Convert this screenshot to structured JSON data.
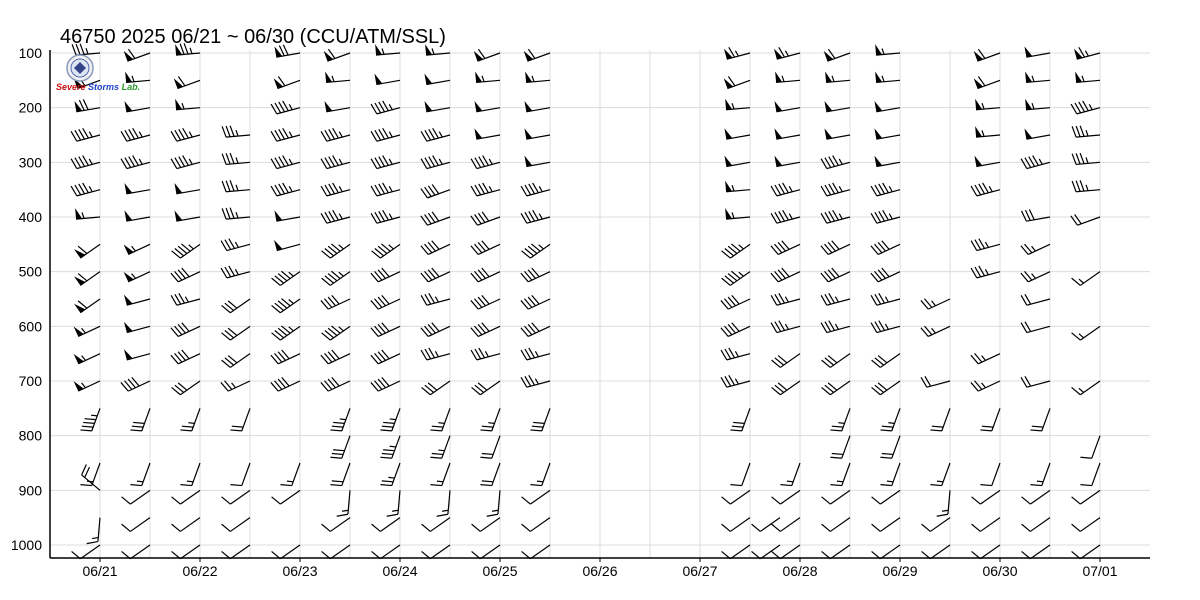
{
  "title": "46750  2025  06/21 ~ 06/30 (CCU/ATM/SSL)",
  "logo": {
    "caption_a": "Severe",
    "caption_b": "Storms",
    "caption_c": "Lab."
  },
  "chart_data": {
    "type": "wind-barb time-height",
    "y_ticks": [
      "100",
      "200",
      "300",
      "400",
      "500",
      "600",
      "700",
      "800",
      "900",
      "1000"
    ],
    "y_values": [
      100,
      200,
      300,
      400,
      500,
      600,
      700,
      800,
      900,
      1000
    ],
    "x_ticks": [
      "06/21",
      "06/22",
      "06/23",
      "06/24",
      "06/25",
      "06/26",
      "06/27",
      "06/28",
      "06/29",
      "06/30",
      "07/01"
    ],
    "ylim": [
      100,
      1000
    ],
    "xlim_days": [
      0,
      10.5
    ],
    "grid": true,
    "soundings": [
      {
        "time": 0.0,
        "barbs": [
          [
            100,
            35
          ],
          [
            150,
            60
          ],
          [
            200,
            70
          ],
          [
            250,
            45
          ],
          [
            300,
            45
          ],
          [
            350,
            45
          ],
          [
            400,
            55
          ],
          [
            450,
            60
          ],
          [
            500,
            60
          ],
          [
            550,
            60
          ],
          [
            600,
            55
          ],
          [
            650,
            55
          ],
          [
            700,
            55
          ],
          [
            750,
            45
          ],
          [
            850,
            15
          ],
          [
            900,
            20
          ],
          [
            950,
            15
          ],
          [
            1000,
            10
          ]
        ]
      },
      {
        "time": 0.5,
        "barbs": [
          [
            100,
            60
          ],
          [
            150,
            55
          ],
          [
            200,
            50
          ],
          [
            250,
            45
          ],
          [
            300,
            45
          ],
          [
            350,
            50
          ],
          [
            400,
            50
          ],
          [
            450,
            55
          ],
          [
            500,
            55
          ],
          [
            550,
            50
          ],
          [
            600,
            50
          ],
          [
            650,
            50
          ],
          [
            700,
            40
          ],
          [
            750,
            30
          ],
          [
            850,
            15
          ],
          [
            900,
            10
          ],
          [
            950,
            10
          ],
          [
            1000,
            10
          ]
        ]
      },
      {
        "time": 1.0,
        "barbs": [
          [
            100,
            75
          ],
          [
            150,
            60
          ],
          [
            200,
            55
          ],
          [
            250,
            45
          ],
          [
            300,
            45
          ],
          [
            350,
            50
          ],
          [
            400,
            50
          ],
          [
            450,
            45
          ],
          [
            500,
            40
          ],
          [
            550,
            35
          ],
          [
            600,
            40
          ],
          [
            650,
            40
          ],
          [
            700,
            30
          ],
          [
            750,
            25
          ],
          [
            850,
            15
          ],
          [
            900,
            10
          ],
          [
            950,
            10
          ],
          [
            1000,
            10
          ]
        ]
      },
      {
        "time": 1.5,
        "barbs": [
          [
            250,
            35
          ],
          [
            300,
            35
          ],
          [
            350,
            35
          ],
          [
            400,
            35
          ],
          [
            450,
            35
          ],
          [
            500,
            35
          ],
          [
            550,
            30
          ],
          [
            600,
            30
          ],
          [
            650,
            30
          ],
          [
            700,
            25
          ],
          [
            750,
            20
          ],
          [
            850,
            10
          ],
          [
            900,
            10
          ],
          [
            950,
            10
          ],
          [
            1000,
            10
          ]
        ]
      },
      {
        "time": 2.0,
        "barbs": [
          [
            100,
            70
          ],
          [
            150,
            60
          ],
          [
            200,
            45
          ],
          [
            250,
            45
          ],
          [
            300,
            45
          ],
          [
            350,
            45
          ],
          [
            400,
            50
          ],
          [
            450,
            50
          ],
          [
            500,
            45
          ],
          [
            550,
            45
          ],
          [
            600,
            45
          ],
          [
            650,
            40
          ],
          [
            700,
            40
          ],
          [
            850,
            15
          ],
          [
            900,
            10
          ],
          [
            1000,
            10
          ]
        ]
      },
      {
        "time": 2.5,
        "barbs": [
          [
            100,
            60
          ],
          [
            150,
            55
          ],
          [
            200,
            50
          ],
          [
            250,
            45
          ],
          [
            300,
            45
          ],
          [
            350,
            45
          ],
          [
            400,
            45
          ],
          [
            450,
            45
          ],
          [
            500,
            45
          ],
          [
            550,
            40
          ],
          [
            600,
            45
          ],
          [
            650,
            40
          ],
          [
            700,
            40
          ],
          [
            750,
            35
          ],
          [
            800,
            30
          ],
          [
            850,
            20
          ],
          [
            900,
            15
          ],
          [
            950,
            10
          ],
          [
            1000,
            10
          ]
        ]
      },
      {
        "time": 3.0,
        "barbs": [
          [
            100,
            55
          ],
          [
            150,
            50
          ],
          [
            200,
            45
          ],
          [
            250,
            45
          ],
          [
            300,
            45
          ],
          [
            350,
            45
          ],
          [
            400,
            45
          ],
          [
            450,
            45
          ],
          [
            500,
            40
          ],
          [
            550,
            40
          ],
          [
            600,
            40
          ],
          [
            650,
            40
          ],
          [
            700,
            40
          ],
          [
            750,
            35
          ],
          [
            800,
            35
          ],
          [
            850,
            25
          ],
          [
            900,
            15
          ],
          [
            950,
            10
          ],
          [
            1000,
            10
          ]
        ]
      },
      {
        "time": 3.5,
        "barbs": [
          [
            100,
            55
          ],
          [
            150,
            50
          ],
          [
            200,
            50
          ],
          [
            250,
            45
          ],
          [
            300,
            45
          ],
          [
            350,
            40
          ],
          [
            400,
            40
          ],
          [
            450,
            40
          ],
          [
            500,
            40
          ],
          [
            550,
            35
          ],
          [
            600,
            40
          ],
          [
            650,
            35
          ],
          [
            700,
            30
          ],
          [
            750,
            25
          ],
          [
            800,
            25
          ],
          [
            850,
            15
          ],
          [
            900,
            15
          ],
          [
            950,
            10
          ],
          [
            1000,
            10
          ]
        ]
      },
      {
        "time": 4.0,
        "barbs": [
          [
            100,
            60
          ],
          [
            150,
            55
          ],
          [
            200,
            50
          ],
          [
            250,
            50
          ],
          [
            300,
            45
          ],
          [
            350,
            45
          ],
          [
            400,
            40
          ],
          [
            450,
            40
          ],
          [
            500,
            40
          ],
          [
            550,
            40
          ],
          [
            600,
            40
          ],
          [
            650,
            35
          ],
          [
            700,
            30
          ],
          [
            750,
            25
          ],
          [
            800,
            20
          ],
          [
            850,
            20
          ],
          [
            900,
            15
          ],
          [
            950,
            10
          ],
          [
            1000,
            10
          ]
        ]
      },
      {
        "time": 4.5,
        "barbs": [
          [
            100,
            60
          ],
          [
            150,
            55
          ],
          [
            200,
            50
          ],
          [
            250,
            50
          ],
          [
            300,
            50
          ],
          [
            350,
            45
          ],
          [
            400,
            45
          ],
          [
            450,
            45
          ],
          [
            500,
            40
          ],
          [
            550,
            40
          ],
          [
            600,
            40
          ],
          [
            650,
            35
          ],
          [
            700,
            35
          ],
          [
            750,
            30
          ],
          [
            850,
            15
          ],
          [
            900,
            10
          ],
          [
            950,
            10
          ],
          [
            1000,
            10
          ]
        ]
      },
      {
        "time": 6.5,
        "barbs": [
          [
            100,
            65
          ],
          [
            150,
            60
          ],
          [
            200,
            55
          ],
          [
            250,
            50
          ],
          [
            300,
            50
          ],
          [
            350,
            55
          ],
          [
            400,
            55
          ],
          [
            450,
            45
          ],
          [
            500,
            45
          ],
          [
            550,
            40
          ],
          [
            600,
            40
          ],
          [
            650,
            35
          ],
          [
            700,
            35
          ],
          [
            750,
            30
          ],
          [
            850,
            10
          ],
          [
            900,
            10
          ],
          [
            950,
            10
          ],
          [
            1000,
            10
          ]
        ]
      },
      {
        "time": 6.8,
        "barbs": [
          [
            950,
            10
          ],
          [
            1000,
            10
          ]
        ]
      },
      {
        "time": 7.0,
        "barbs": [
          [
            100,
            65
          ],
          [
            150,
            55
          ],
          [
            200,
            50
          ],
          [
            250,
            50
          ],
          [
            300,
            50
          ],
          [
            350,
            45
          ],
          [
            400,
            45
          ],
          [
            450,
            40
          ],
          [
            500,
            40
          ],
          [
            550,
            35
          ],
          [
            600,
            35
          ],
          [
            650,
            30
          ],
          [
            700,
            30
          ],
          [
            850,
            15
          ],
          [
            900,
            10
          ],
          [
            950,
            10
          ],
          [
            1000,
            10
          ]
        ]
      },
      {
        "time": 7.5,
        "barbs": [
          [
            100,
            60
          ],
          [
            150,
            55
          ],
          [
            200,
            50
          ],
          [
            250,
            50
          ],
          [
            300,
            45
          ],
          [
            350,
            45
          ],
          [
            400,
            45
          ],
          [
            450,
            40
          ],
          [
            500,
            40
          ],
          [
            550,
            35
          ],
          [
            600,
            35
          ],
          [
            650,
            30
          ],
          [
            700,
            30
          ],
          [
            750,
            25
          ],
          [
            800,
            20
          ],
          [
            850,
            15
          ],
          [
            900,
            10
          ],
          [
            950,
            10
          ],
          [
            1000,
            10
          ]
        ]
      },
      {
        "time": 8.0,
        "barbs": [
          [
            100,
            55
          ],
          [
            150,
            55
          ],
          [
            200,
            50
          ],
          [
            250,
            50
          ],
          [
            300,
            50
          ],
          [
            350,
            45
          ],
          [
            400,
            45
          ],
          [
            450,
            40
          ],
          [
            500,
            40
          ],
          [
            550,
            35
          ],
          [
            600,
            35
          ],
          [
            650,
            30
          ],
          [
            700,
            30
          ],
          [
            750,
            25
          ],
          [
            800,
            20
          ],
          [
            850,
            15
          ],
          [
            900,
            10
          ],
          [
            950,
            10
          ],
          [
            1000,
            10
          ]
        ]
      },
      {
        "time": 8.5,
        "barbs": [
          [
            550,
            25
          ],
          [
            600,
            25
          ],
          [
            700,
            20
          ],
          [
            750,
            20
          ],
          [
            850,
            15
          ],
          [
            900,
            15
          ],
          [
            950,
            10
          ],
          [
            1000,
            10
          ]
        ]
      },
      {
        "time": 9.0,
        "barbs": [
          [
            100,
            60
          ],
          [
            150,
            60
          ],
          [
            200,
            55
          ],
          [
            250,
            55
          ],
          [
            300,
            50
          ],
          [
            350,
            45
          ],
          [
            450,
            35
          ],
          [
            500,
            35
          ],
          [
            650,
            25
          ],
          [
            700,
            25
          ],
          [
            750,
            20
          ],
          [
            850,
            10
          ],
          [
            900,
            10
          ],
          [
            950,
            10
          ],
          [
            1000,
            10
          ]
        ]
      },
      {
        "time": 9.5,
        "barbs": [
          [
            100,
            50
          ],
          [
            150,
            55
          ],
          [
            200,
            55
          ],
          [
            250,
            50
          ],
          [
            300,
            45
          ],
          [
            400,
            30
          ],
          [
            450,
            25
          ],
          [
            500,
            25
          ],
          [
            550,
            20
          ],
          [
            600,
            20
          ],
          [
            700,
            20
          ],
          [
            750,
            20
          ],
          [
            850,
            15
          ],
          [
            900,
            10
          ],
          [
            950,
            10
          ],
          [
            1000,
            10
          ]
        ]
      },
      {
        "time": 10.0,
        "barbs": [
          [
            100,
            65
          ],
          [
            150,
            55
          ],
          [
            200,
            45
          ],
          [
            250,
            35
          ],
          [
            300,
            35
          ],
          [
            350,
            35
          ],
          [
            400,
            20
          ],
          [
            500,
            15
          ],
          [
            600,
            15
          ],
          [
            700,
            15
          ],
          [
            800,
            10
          ],
          [
            850,
            10
          ],
          [
            900,
            10
          ],
          [
            950,
            10
          ],
          [
            1000,
            10
          ]
        ]
      }
    ]
  }
}
